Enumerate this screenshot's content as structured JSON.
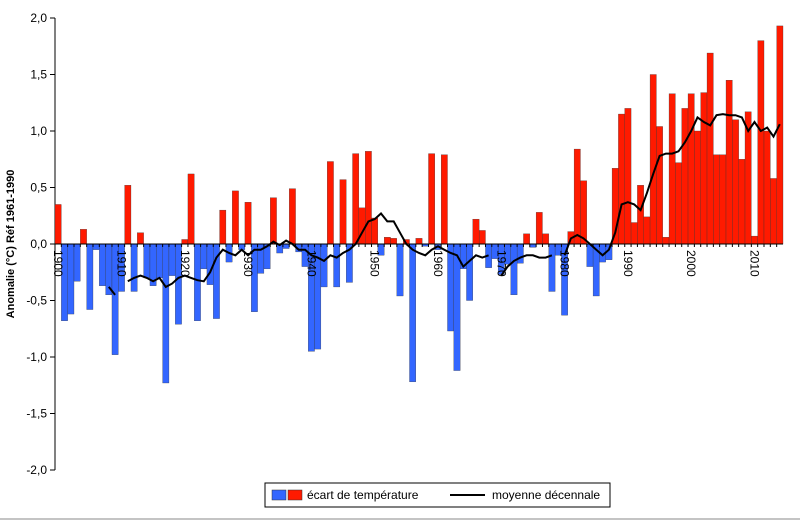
{
  "chart_data": {
    "type": "bar",
    "y_label": "Anomalie (°C) Réf 1961-1990",
    "ylim": [
      -2,
      2
    ],
    "yticks": [
      {
        "value": -2,
        "label": "-2,0"
      },
      {
        "value": -1.5,
        "label": "-1,5"
      },
      {
        "value": -1,
        "label": "-1,0"
      },
      {
        "value": -0.5,
        "label": "-0,5"
      },
      {
        "value": 0,
        "label": "0,0"
      },
      {
        "value": 0.5,
        "label": "0,5"
      },
      {
        "value": 1,
        "label": "1,0"
      },
      {
        "value": 1.5,
        "label": "1,5"
      },
      {
        "value": 2,
        "label": "2,0"
      }
    ],
    "categories": [
      "1900",
      null,
      null,
      null,
      null,
      null,
      null,
      null,
      null,
      null,
      "1910",
      null,
      null,
      null,
      null,
      null,
      null,
      null,
      null,
      null,
      "1920",
      null,
      null,
      null,
      null,
      null,
      null,
      null,
      null,
      null,
      "1930",
      null,
      null,
      null,
      null,
      null,
      null,
      null,
      null,
      null,
      "1940",
      null,
      null,
      null,
      null,
      null,
      null,
      null,
      null,
      null,
      "1950",
      null,
      null,
      null,
      null,
      null,
      null,
      null,
      null,
      null,
      "1960",
      null,
      null,
      null,
      null,
      null,
      null,
      null,
      null,
      null,
      "1970",
      null,
      null,
      null,
      null,
      null,
      null,
      null,
      null,
      null,
      "1980",
      null,
      null,
      null,
      null,
      null,
      null,
      null,
      null,
      null,
      "1990",
      null,
      null,
      null,
      null,
      null,
      null,
      null,
      null,
      null,
      "2000",
      null,
      null,
      null,
      null,
      null,
      null,
      null,
      null,
      null,
      "2010",
      null,
      null,
      null,
      null
    ],
    "tick_color": "#2e8b2e",
    "series": [
      {
        "name": "écart de température",
        "color": "#ff1a00",
        "negative_color": "#3366ff",
        "values": [
          0.35,
          -0.68,
          -0.62,
          -0.33,
          0.13,
          -0.58,
          -0.05,
          -0.37,
          -0.45,
          -0.98,
          -0.42,
          0.52,
          -0.42,
          0.1,
          -0.3,
          -0.37,
          -0.3,
          -1.23,
          -0.28,
          -0.71,
          0.04,
          0.62,
          -0.68,
          -0.22,
          -0.36,
          -0.66,
          0.3,
          -0.16,
          0.47,
          -0.05,
          0.37,
          -0.6,
          -0.26,
          -0.22,
          0.41,
          -0.08,
          -0.04,
          0.49,
          -0.07,
          -0.2,
          -0.95,
          -0.93,
          -0.38,
          0.73,
          -0.38,
          0.57,
          -0.34,
          0.8,
          0.32,
          0.82,
          0.23,
          -0.1,
          0.06,
          0.05,
          -0.46,
          0.04,
          -1.22,
          0.05,
          -0.02,
          0.8,
          -0.05,
          0.79,
          -0.77,
          -1.12,
          -0.22,
          -0.5,
          0.22,
          0.12,
          -0.21,
          -0.13,
          -0.27,
          -0.18,
          -0.45,
          -0.17,
          0.09,
          -0.03,
          0.28,
          0.09,
          -0.42,
          -0.1,
          -0.63,
          0.11,
          0.84,
          0.56,
          -0.2,
          -0.46,
          -0.16,
          -0.14,
          0.67,
          1.15,
          1.2,
          0.19,
          0.52,
          0.24,
          1.5,
          1.04,
          0.06,
          1.33,
          0.72,
          1.2,
          1.33,
          1.0,
          1.34,
          1.69,
          0.79,
          0.79,
          1.45,
          1.1,
          0.75,
          1.17,
          0.07,
          1.8,
          1.0,
          0.58,
          1.93
        ]
      },
      {
        "name": "moyenne décennale",
        "color": "#000000",
        "type": "line",
        "values": [
          null,
          null,
          null,
          null,
          null,
          null,
          null,
          null,
          -0.38,
          -0.45,
          null,
          -0.33,
          -0.3,
          -0.28,
          -0.3,
          -0.33,
          -0.3,
          -0.38,
          -0.35,
          -0.3,
          -0.28,
          -0.3,
          -0.32,
          -0.33,
          -0.25,
          -0.12,
          -0.05,
          -0.08,
          -0.1,
          -0.05,
          -0.1,
          -0.05,
          -0.05,
          -0.02,
          0.02,
          -0.01,
          0.03,
          0,
          -0.05,
          -0.05,
          -0.1,
          -0.12,
          -0.15,
          -0.1,
          -0.12,
          -0.08,
          -0.05,
          0,
          0.1,
          0.2,
          0.22,
          0.27,
          0.2,
          0.2,
          0.1,
          0,
          -0.05,
          -0.08,
          -0.1,
          -0.05,
          -0.02,
          -0.05,
          -0.08,
          -0.1,
          -0.2,
          -0.15,
          -0.1,
          -0.12,
          -0.1,
          null,
          -0.28,
          -0.2,
          -0.15,
          -0.12,
          -0.1,
          -0.1,
          -0.12,
          -0.12,
          -0.1,
          null,
          -0.1,
          0.05,
          0.08,
          0.05,
          0,
          -0.05,
          -0.1,
          -0.05,
          0.1,
          0.35,
          0.37,
          0.35,
          0.3,
          0.45,
          0.62,
          0.78,
          0.8,
          0.8,
          0.82,
          0.9,
          1.0,
          1.12,
          1.08,
          1.05,
          1.14,
          1.15,
          1.14,
          1.14,
          1.12,
          1.0,
          1.08,
          1.0,
          1.03,
          0.95,
          1.06
        ]
      }
    ]
  }
}
